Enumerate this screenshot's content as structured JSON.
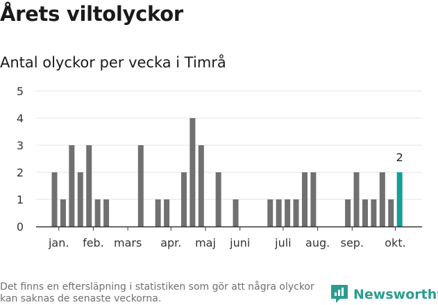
{
  "title": "Årets viltolyckor",
  "subtitle": "Antal olyckor per vecka i Timrå",
  "footnote": "Det finns en eftersläpning i statistiken som gör att några olyckor kan saknas de senaste veckorna.",
  "brand": {
    "name": "Newsworthy",
    "icon": "newsworthy-logo-icon"
  },
  "colors": {
    "bar": "#707070",
    "highlight": "#13a196",
    "grid": "#e3e3e3",
    "axis": "#333333",
    "brand": "#2a9d8f"
  },
  "chart_data": {
    "type": "bar",
    "title": "Antal olyckor per vecka i Timrå",
    "xlabel": "",
    "ylabel": "",
    "ylim": [
      0,
      5
    ],
    "yticks": [
      0,
      1,
      2,
      3,
      4,
      5
    ],
    "grid": true,
    "x": [
      1,
      2,
      3,
      4,
      5,
      6,
      7,
      8,
      9,
      10,
      11,
      12,
      13,
      14,
      15,
      16,
      17,
      18,
      19,
      20,
      21,
      22,
      23,
      24,
      25,
      26,
      27,
      28,
      29,
      30,
      31,
      32,
      33,
      34,
      35,
      36,
      37,
      38,
      39,
      40,
      41,
      42
    ],
    "values": [
      2,
      1,
      3,
      2,
      3,
      1,
      1,
      0,
      0,
      0,
      3,
      0,
      1,
      1,
      0,
      2,
      4,
      3,
      0,
      2,
      0,
      1,
      0,
      0,
      0,
      1,
      1,
      1,
      1,
      2,
      2,
      0,
      0,
      0,
      1,
      2,
      1,
      1,
      2,
      1,
      2,
      0
    ],
    "highlight_index": 40,
    "highlight_label": "2",
    "month_labels": [
      {
        "label": "jan.",
        "week": 1.5
      },
      {
        "label": "feb.",
        "week": 5.5
      },
      {
        "label": "mars",
        "week": 9.5
      },
      {
        "label": "apr.",
        "week": 14.5
      },
      {
        "label": "maj",
        "week": 18.5
      },
      {
        "label": "juni",
        "week": 22.5
      },
      {
        "label": "juli",
        "week": 27.5
      },
      {
        "label": "aug.",
        "week": 31.5
      },
      {
        "label": "sep.",
        "week": 35.5
      },
      {
        "label": "okt.",
        "week": 40.5
      }
    ]
  }
}
